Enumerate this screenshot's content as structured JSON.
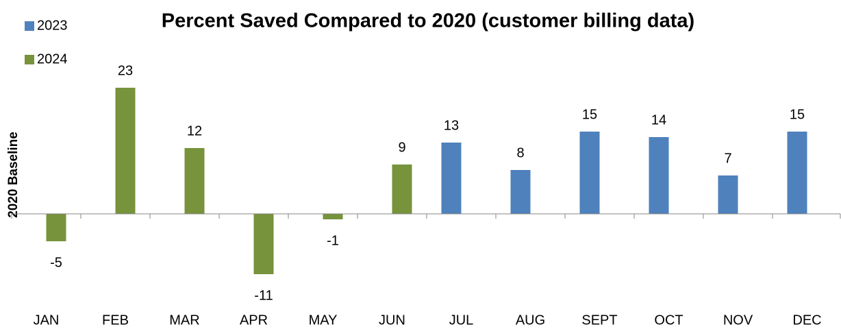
{
  "chart_data": {
    "type": "bar",
    "title": "Percent Saved Compared to 2020 (customer billing data)",
    "y_label": "2020 Baseline",
    "categories": [
      "JAN",
      "FEB",
      "MAR",
      "APR",
      "MAY",
      "JUN",
      "JUL",
      "AUG",
      "SEPT",
      "OCT",
      "NOV",
      "DEC"
    ],
    "series": [
      {
        "name": "2023",
        "color": "#4f81bd",
        "values": [
          null,
          null,
          null,
          null,
          null,
          null,
          13,
          8,
          15,
          14,
          7,
          15
        ]
      },
      {
        "name": "2024",
        "color": "#77933c",
        "values": [
          -5,
          23,
          12,
          -11,
          -1,
          9,
          null,
          null,
          null,
          null,
          null,
          null
        ]
      }
    ],
    "ylim": [
      -15,
      25
    ],
    "legend": "top-left"
  }
}
